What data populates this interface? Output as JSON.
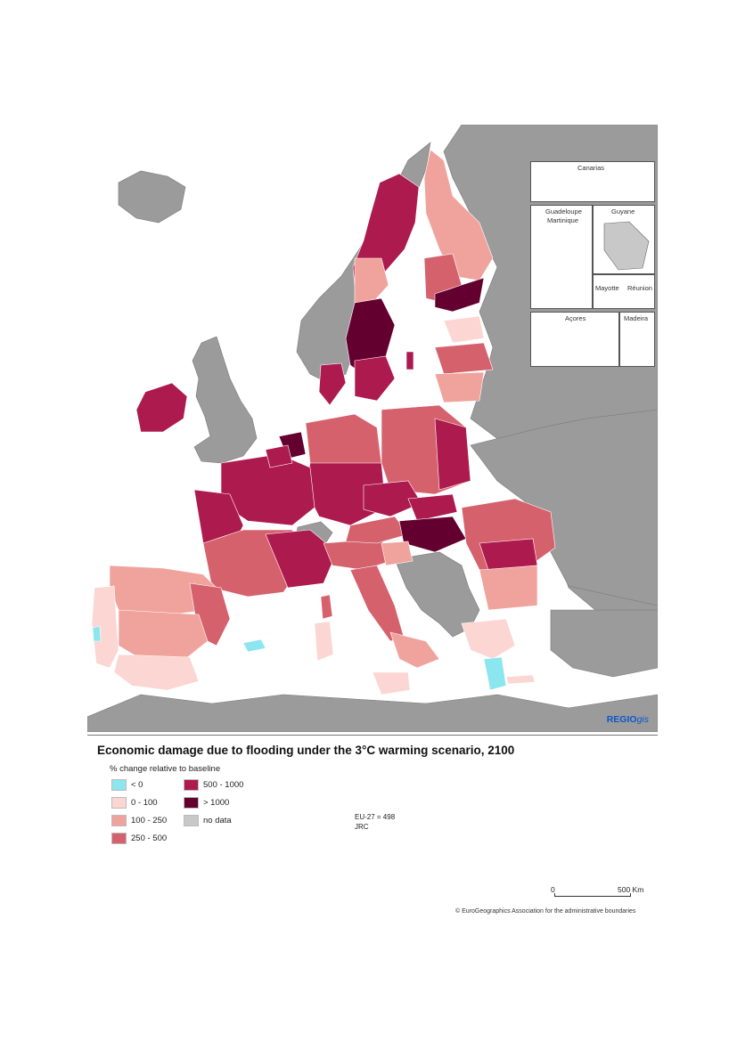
{
  "colors": {
    "less_than_0": "#8be6f0",
    "c0_100": "#fbd6d2",
    "c100_250": "#f0a39c",
    "c250_500": "#d5616d",
    "c500_1000": "#ad1a4e",
    "gt_1000": "#64002f",
    "no_data": "#c8c8c8",
    "non_eu_land": "#9b9b9b",
    "sea": "#ffffff"
  },
  "map": {
    "title": "Economic damage due to flooding under the 3°C warming scenario, 2100",
    "subtitle": "% change relative to baseline",
    "branding": {
      "bold": "REGIO",
      "italic": "gis"
    },
    "insets": [
      "Canarias",
      "Guadeloupe",
      "Martinique",
      "Guyane",
      "Mayotte",
      "Réunion",
      "Açores",
      "Madeira"
    ],
    "legend": [
      {
        "label": "< 0",
        "color": "#8be6f0"
      },
      {
        "label": "0 - 100",
        "color": "#fbd6d2"
      },
      {
        "label": "100 - 250",
        "color": "#f0a39c"
      },
      {
        "label": "250 - 500",
        "color": "#d5616d"
      },
      {
        "label": "500 - 1000",
        "color": "#ad1a4e"
      },
      {
        "label": "> 1000",
        "color": "#64002f"
      },
      {
        "label": "no data",
        "color": "#c8c8c8"
      }
    ],
    "eu_value": "EU-27 = 498",
    "source": "JRC",
    "scale_start": "0",
    "scale_end": "500 Km",
    "credit": "© EuroGeographics Association for the administrative boundaries"
  }
}
